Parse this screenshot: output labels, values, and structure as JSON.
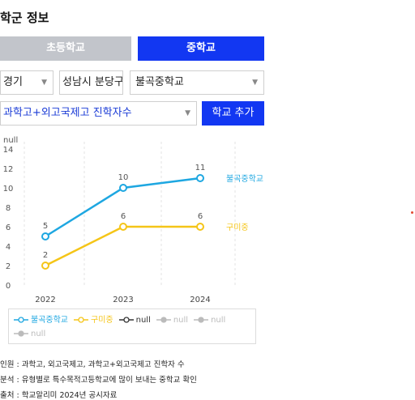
{
  "header": {
    "title": "학군 정보"
  },
  "tabs": [
    {
      "label": "초등학교",
      "active": false
    },
    {
      "label": "중학교",
      "active": true
    }
  ],
  "filters": {
    "region": "경기",
    "city": "성남시 분당구",
    "school": "불곡중학교",
    "metric": "과학고+외고국제고 진학자수",
    "add_button": "학교 추가"
  },
  "chart_data": {
    "type": "line",
    "y_unit_label": "null",
    "categories": [
      "2022",
      "2023",
      "2024"
    ],
    "ylim": [
      0,
      14
    ],
    "yticks": [
      0,
      2,
      4,
      6,
      8,
      10,
      12,
      14
    ],
    "grid": "vertical dashed",
    "series": [
      {
        "name": "불곡중학교",
        "values": [
          5,
          10,
          11
        ],
        "color": "#1ea7e1"
      },
      {
        "name": "구미중",
        "values": [
          2,
          6,
          6
        ],
        "color": "#f5c518"
      }
    ]
  },
  "legend": {
    "items": [
      {
        "label": "불곡중학교",
        "color": "#1ea7e1",
        "hollow": true
      },
      {
        "label": "구미중",
        "color": "#f5c518",
        "hollow": true
      },
      {
        "label": "null",
        "color": "#333333",
        "hollow": true
      },
      {
        "label": "null",
        "color": "#bbbbbb",
        "hollow": false
      },
      {
        "label": "null",
        "color": "#bbbbbb",
        "hollow": false
      },
      {
        "label": "null",
        "color": "#bbbbbb",
        "hollow": false
      }
    ]
  },
  "notes": [
    "인원 : 과학고, 외고국제고, 과학고+외고국제고 진학자 수",
    "분석 : 유형별로 특수목적고등학교에 많이 보내는 중학교 확인",
    "출처 : 학교알리미 2024년 공시자료"
  ]
}
